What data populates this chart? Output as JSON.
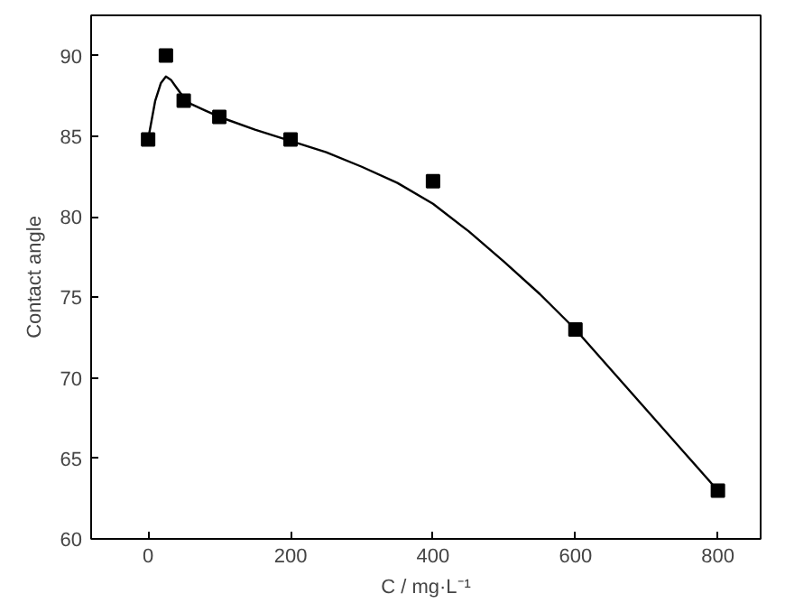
{
  "chart_data": {
    "type": "scatter",
    "xlabel": "C / mg·L⁻¹",
    "ylabel": "Contact angle",
    "xlim": [
      -80,
      860
    ],
    "ylim": [
      60,
      92.5
    ],
    "xticks": [
      0,
      200,
      400,
      600,
      800
    ],
    "yticks": [
      60,
      65,
      70,
      75,
      80,
      85,
      90
    ],
    "grid": false,
    "marker": "square",
    "series": [
      {
        "color": "#000000",
        "x": [
          0,
          25,
          50,
          100,
          200,
          400,
          600,
          800
        ],
        "values": [
          84.8,
          90,
          87.2,
          86.2,
          84.8,
          82.2,
          73,
          63
        ]
      },
      {
        "type": "line",
        "color": "#000000",
        "marker": "none",
        "x": [
          0,
          5,
          10,
          18,
          25,
          32,
          40,
          50,
          60,
          80,
          100,
          150,
          200,
          250,
          300,
          350,
          400,
          450,
          500,
          550,
          600,
          700,
          800
        ],
        "values": [
          84.8,
          86,
          87.2,
          88.3,
          88.7,
          88.5,
          88,
          87.4,
          87,
          86.6,
          86.2,
          85.4,
          84.7,
          84,
          83.1,
          82.1,
          80.8,
          79.1,
          77.2,
          75.2,
          73,
          68,
          63
        ]
      }
    ]
  }
}
